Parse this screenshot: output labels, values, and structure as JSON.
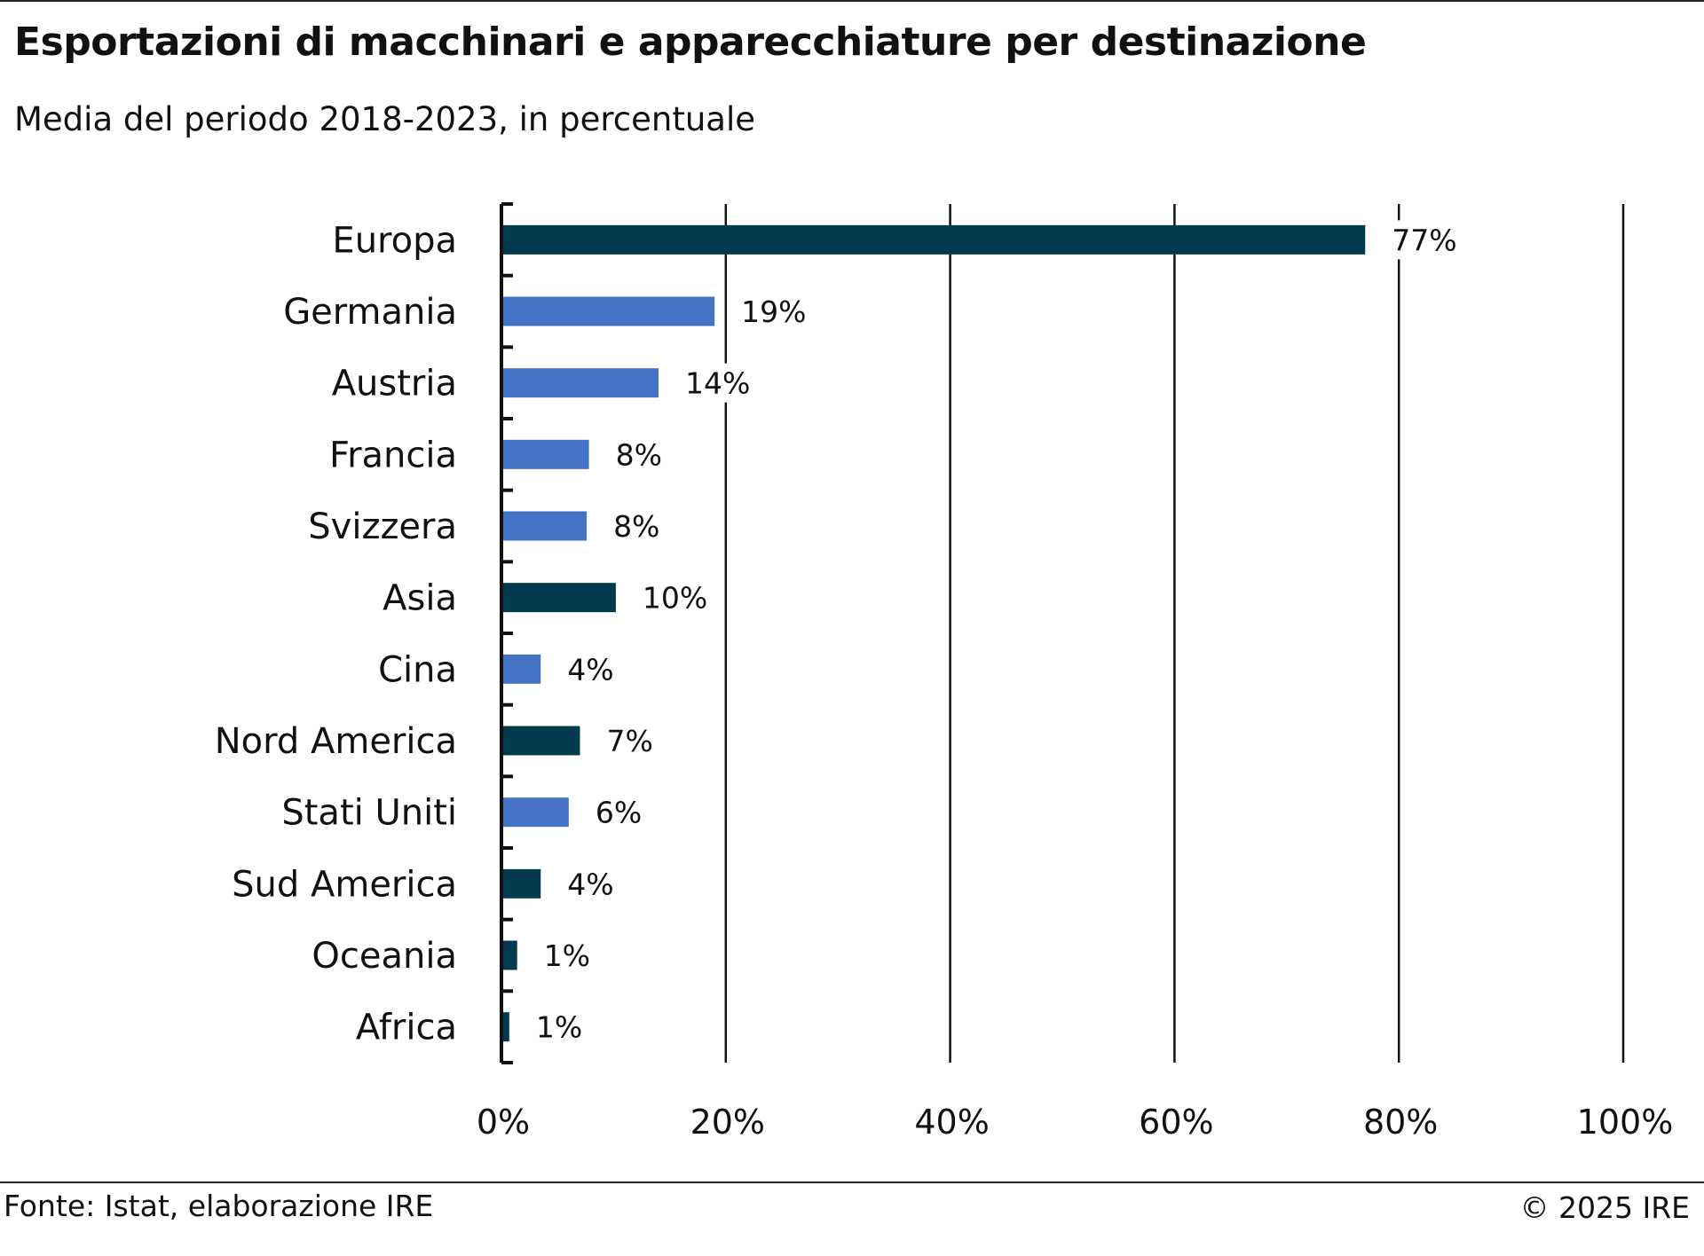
{
  "chart_data": {
    "type": "bar",
    "orientation": "horizontal",
    "title": "Esportazioni di macchinari e apparecchiature per destinazione",
    "subtitle": "Media del periodo 2018-2023, in percentuale",
    "categories": [
      "Europa",
      "Germania",
      "Austria",
      "Francia",
      "Svizzera",
      "Asia",
      "Cina",
      "Nord America",
      "Stati Uniti",
      "Sud America",
      "Oceania",
      "Africa"
    ],
    "values": [
      77,
      19,
      14,
      7.8,
      7.6,
      10.2,
      3.5,
      7,
      6,
      3.5,
      1.4,
      0.7
    ],
    "value_labels": [
      "77%",
      "19%",
      "14%",
      "8%",
      "8%",
      "10%",
      "4%",
      "7%",
      "6%",
      "4%",
      "1%",
      "1%"
    ],
    "bar_levels": [
      "region",
      "country",
      "country",
      "country",
      "country",
      "region",
      "country",
      "region",
      "country",
      "region",
      "region",
      "region"
    ],
    "colors": {
      "region": "#043a50",
      "country": "#4472c4"
    },
    "xlim": [
      0,
      100
    ],
    "xticks": [
      0,
      20,
      40,
      60,
      80,
      100
    ],
    "xtick_labels": [
      "0%",
      "20%",
      "40%",
      "60%",
      "80%",
      "100%"
    ],
    "grid": "vertical"
  },
  "footer": {
    "source": "Fonte: Istat, elaborazione IRE",
    "copyright": "© 2025 IRE"
  }
}
